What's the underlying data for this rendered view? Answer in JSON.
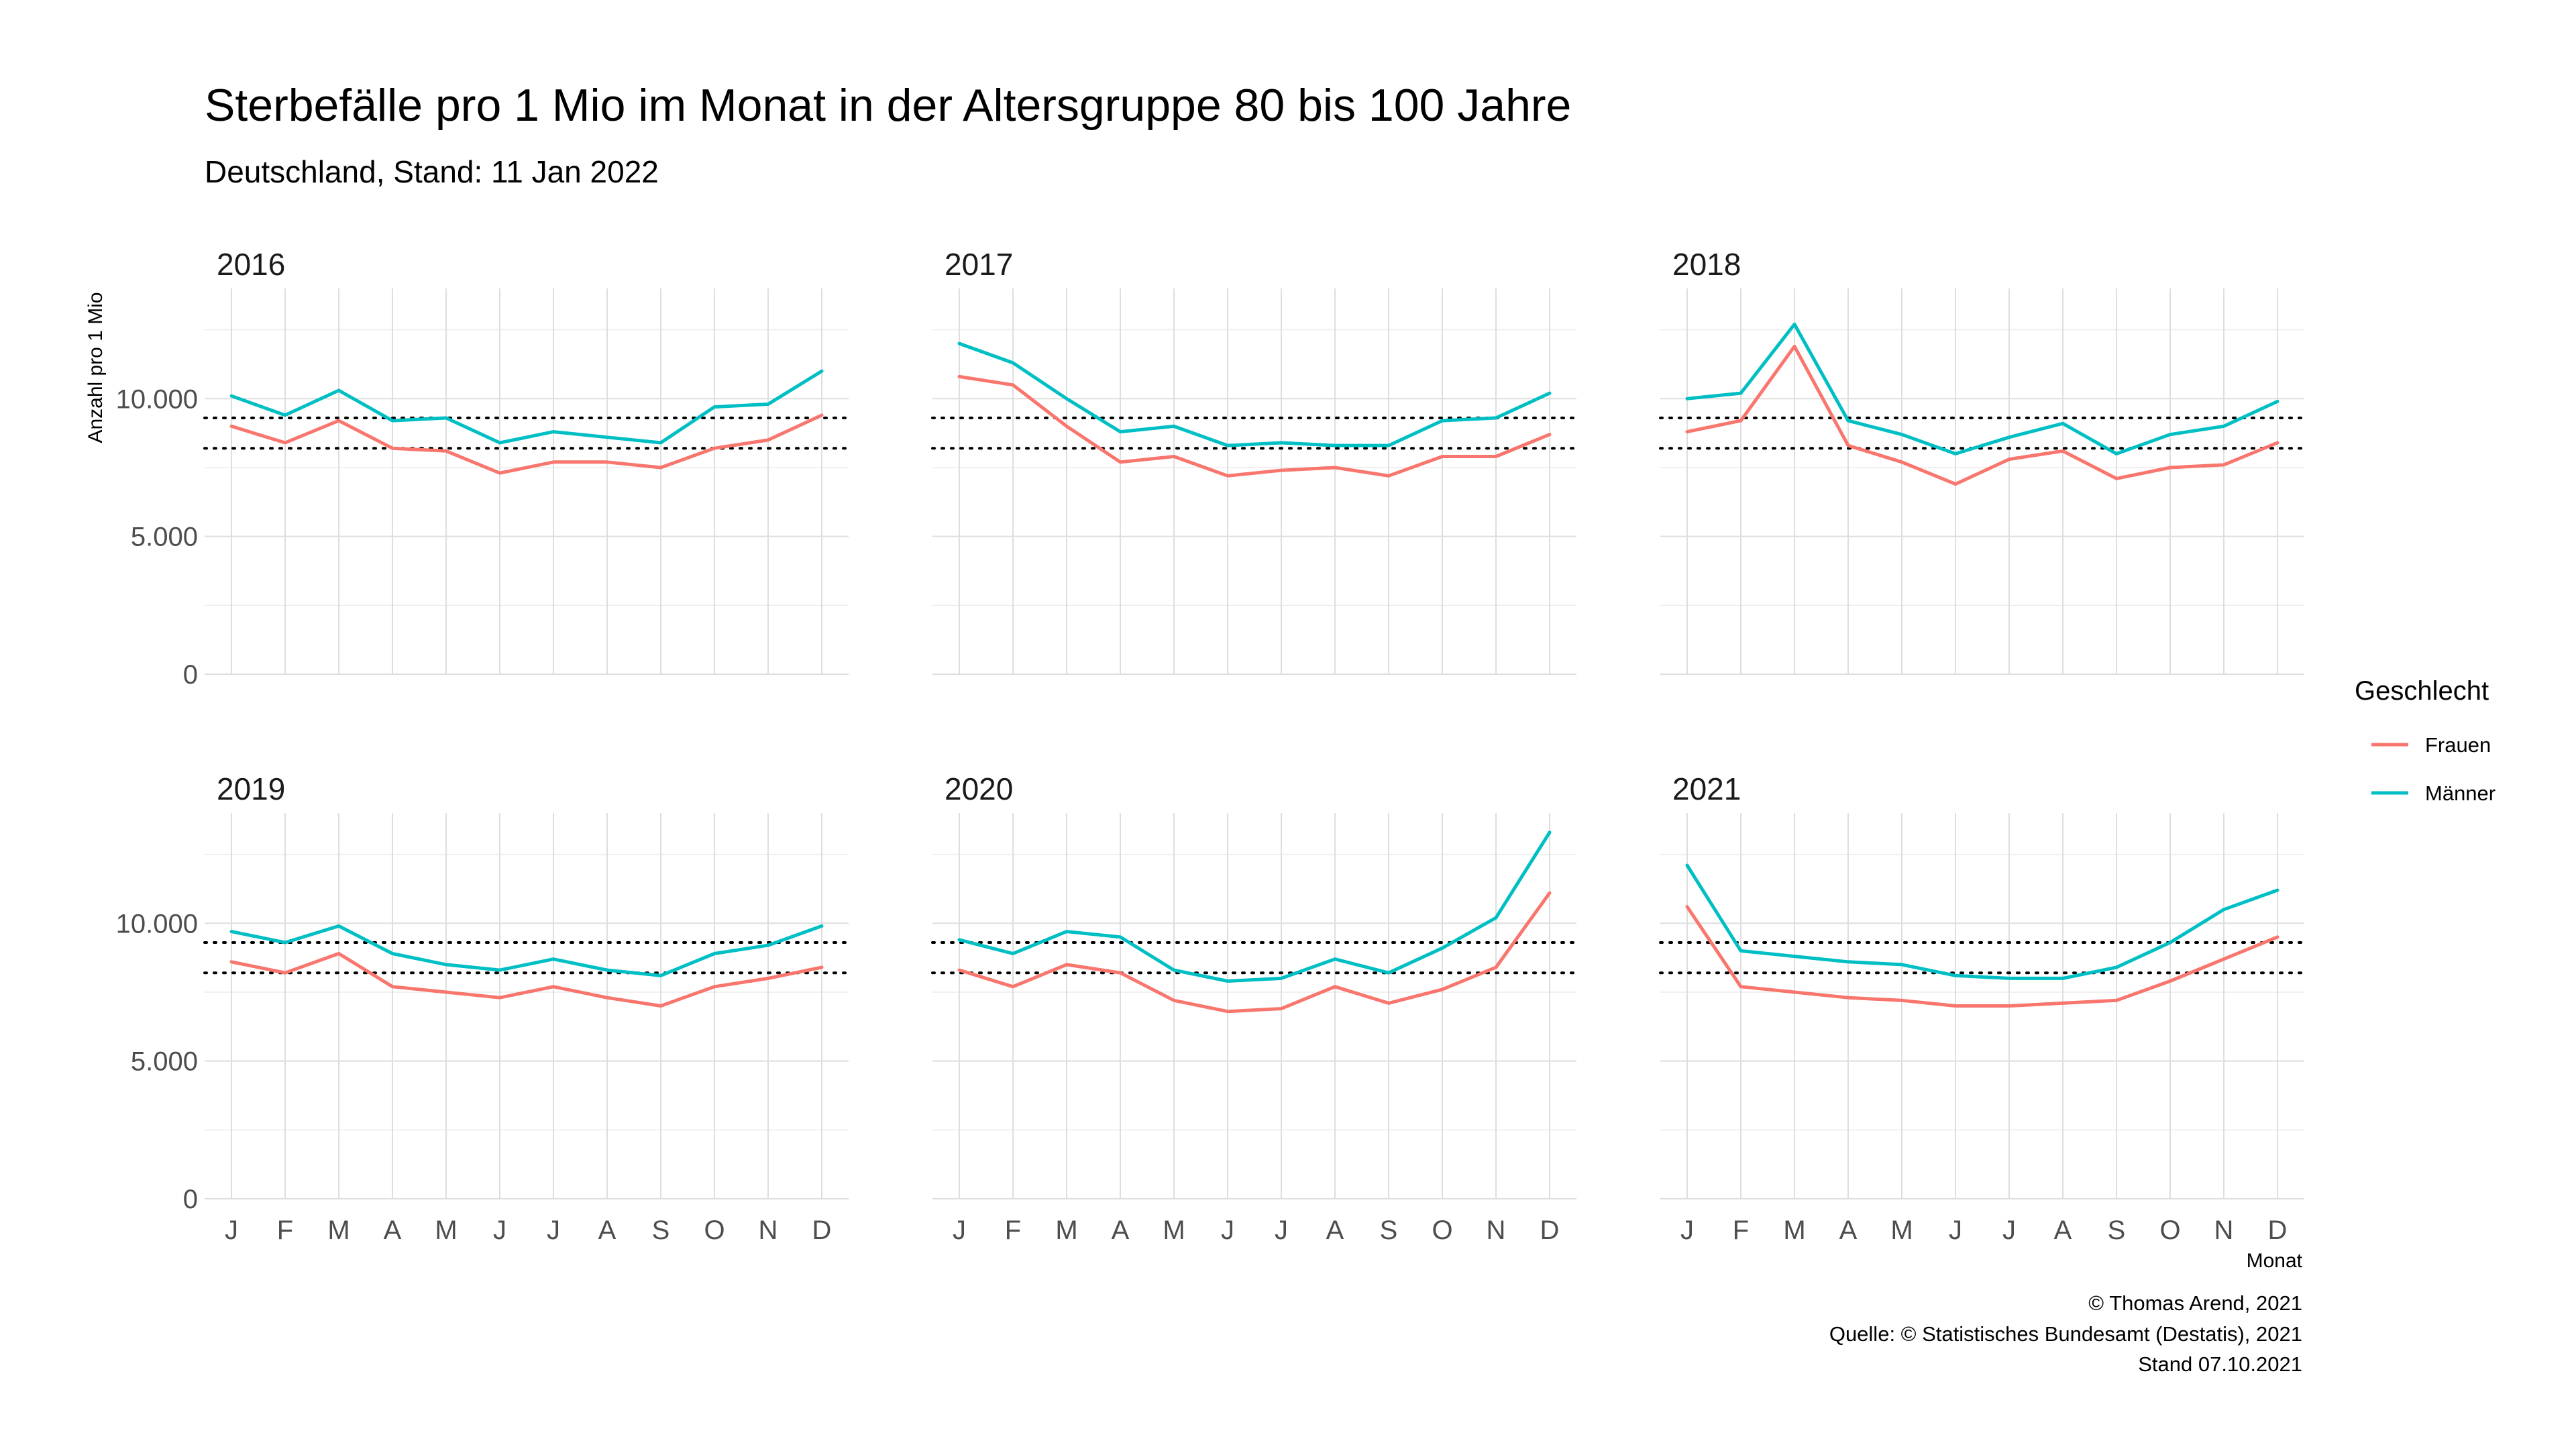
{
  "chart_data": {
    "type": "line",
    "title": "Sterbefälle pro 1 Mio im Monat in der Altersgruppe 80 bis 100 Jahre",
    "subtitle": "Deutschland, Stand: 11 Jan 2022",
    "xlabel": "Monat",
    "ylabel": "Anzahl pro 1 Mio",
    "ylim": [
      0,
      14000
    ],
    "y_ticks": [
      0,
      5000,
      10000
    ],
    "y_tick_labels": [
      "0",
      "5.000",
      "10.000"
    ],
    "categories": [
      "J",
      "F",
      "M",
      "A",
      "M",
      "J",
      "J",
      "A",
      "S",
      "O",
      "N",
      "D"
    ],
    "reference_lines": [
      9300,
      8200
    ],
    "legend": {
      "title": "Geschlecht",
      "position": "right",
      "entries": [
        {
          "name": "Frauen",
          "color": "#F8766D"
        },
        {
          "name": "Männer",
          "color": "#00BFC4"
        }
      ]
    },
    "facets": [
      {
        "year": "2016",
        "series": [
          {
            "name": "Frauen",
            "values": [
              9000,
              8400,
              9200,
              8200,
              8100,
              7300,
              7700,
              7700,
              7500,
              8200,
              8500,
              9400
            ]
          },
          {
            "name": "Männer",
            "values": [
              10100,
              9400,
              10300,
              9200,
              9300,
              8400,
              8800,
              8600,
              8400,
              9700,
              9800,
              11000
            ]
          }
        ]
      },
      {
        "year": "2017",
        "series": [
          {
            "name": "Frauen",
            "values": [
              10800,
              10500,
              9000,
              7700,
              7900,
              7200,
              7400,
              7500,
              7200,
              7900,
              7900,
              8700
            ]
          },
          {
            "name": "Männer",
            "values": [
              12000,
              11300,
              10000,
              8800,
              9000,
              8300,
              8400,
              8300,
              8300,
              9200,
              9300,
              10200
            ]
          }
        ]
      },
      {
        "year": "2018",
        "series": [
          {
            "name": "Frauen",
            "values": [
              8800,
              9200,
              11900,
              8300,
              7700,
              6900,
              7800,
              8100,
              7100,
              7500,
              7600,
              8400
            ]
          },
          {
            "name": "Männer",
            "values": [
              10000,
              10200,
              12700,
              9200,
              8700,
              8000,
              8600,
              9100,
              8000,
              8700,
              9000,
              9900
            ]
          }
        ]
      },
      {
        "year": "2019",
        "series": [
          {
            "name": "Frauen",
            "values": [
              8600,
              8200,
              8900,
              7700,
              7500,
              7300,
              7700,
              7300,
              7000,
              7700,
              8000,
              8400
            ]
          },
          {
            "name": "Männer",
            "values": [
              9700,
              9300,
              9900,
              8900,
              8500,
              8300,
              8700,
              8300,
              8100,
              8900,
              9200,
              9900
            ]
          }
        ]
      },
      {
        "year": "2020",
        "series": [
          {
            "name": "Frauen",
            "values": [
              8300,
              7700,
              8500,
              8200,
              7200,
              6800,
              6900,
              7700,
              7100,
              7600,
              8400,
              11100
            ]
          },
          {
            "name": "Männer",
            "values": [
              9400,
              8900,
              9700,
              9500,
              8300,
              7900,
              8000,
              8700,
              8200,
              9100,
              10200,
              13300
            ]
          }
        ]
      },
      {
        "year": "2021",
        "series": [
          {
            "name": "Frauen",
            "values": [
              10600,
              7700,
              7500,
              7300,
              7200,
              7000,
              7000,
              7100,
              7200,
              7900,
              8700,
              9500
            ]
          },
          {
            "name": "Männer",
            "values": [
              12100,
              9000,
              8800,
              8600,
              8500,
              8100,
              8000,
              8000,
              8400,
              9300,
              10500,
              11200
            ]
          }
        ]
      }
    ]
  },
  "caption": {
    "line1": "© Thomas Arend, 2021",
    "line2": "Quelle: © Statistisches Bundesamt (Destatis), 2021",
    "line3": "Stand 07.10.2021"
  }
}
